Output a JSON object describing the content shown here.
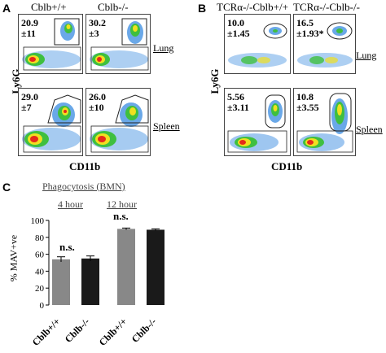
{
  "panel_a": {
    "letter": "A",
    "col1": "Cblb+/+",
    "col2": "Cblb-/-",
    "ylabel": "Ly6G",
    "xlabel": "CD11b",
    "lung_label": "Lung",
    "spleen_label": "Spleen",
    "lung_wt": "20.9\n±11",
    "lung_ko": "30.2\n±3",
    "spleen_wt": "29.0\n±7",
    "spleen_ko": "26.0\n±10"
  },
  "panel_b": {
    "letter": "B",
    "col1": "TCRα-/-Cblb+/+",
    "col2": "TCRα-/-Cblb-/-",
    "ylabel": "Ly6G",
    "xlabel": "CD11b",
    "lung_label": "Lung",
    "spleen_label": "Spleen",
    "lung_wt": "10.0\n±1.45",
    "lung_ko": "16.5\n±1.93*",
    "spleen_wt": "5.56\n±3.11",
    "spleen_ko": "10.8\n±3.55"
  },
  "panel_c": {
    "letter": "C",
    "title": "Phagocytosis (BMN)",
    "group1": "4 hour",
    "group2": "12 hour",
    "ns1": "n.s.",
    "ns2": "n.s.",
    "ylabel": "% MAV+ve",
    "cat_wt": "Cblb+/+",
    "cat_ko": "Cblb-/-"
  },
  "chart_data": {
    "type": "bar",
    "title": "Phagocytosis (BMN)",
    "ylabel": "% MAV+ve",
    "ylim": [
      0,
      100
    ],
    "yticks": [
      0,
      20,
      40,
      60,
      80,
      100
    ],
    "categories": [
      "Cblb+/+",
      "Cblb-/-",
      "Cblb+/+",
      "Cblb-/-"
    ],
    "groups": [
      "4 hour",
      "4 hour",
      "12 hour",
      "12 hour"
    ],
    "values": [
      54,
      55,
      90,
      89
    ],
    "errors": [
      3,
      3,
      1,
      1
    ],
    "colors": [
      "#888888",
      "#1a1a1a",
      "#888888",
      "#1a1a1a"
    ],
    "annotations": [
      "n.s.",
      "n.s."
    ]
  },
  "colors": {
    "bar_wt": "#888888",
    "bar_ko": "#1a1a1a"
  }
}
